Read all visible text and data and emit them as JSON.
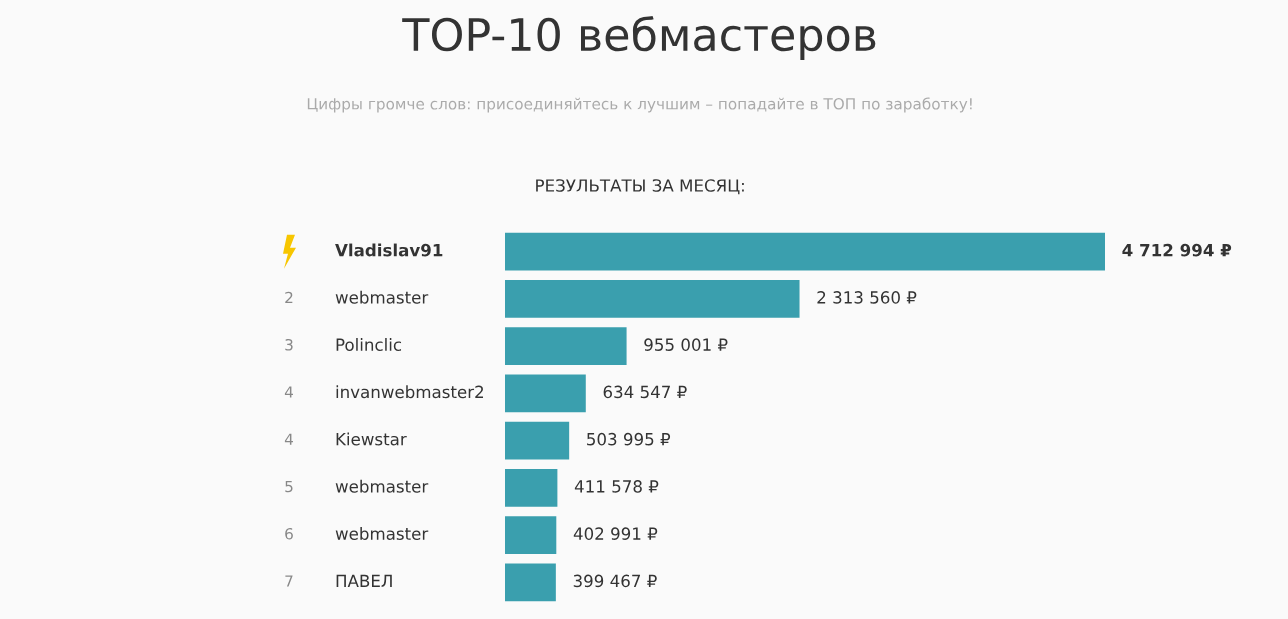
{
  "chart_data": {
    "type": "bar",
    "orientation": "horizontal",
    "title": "TOP-10 вебмастеров",
    "subtitle": "Цифры громче слов: присоединяйтесь к лучшим – попадайте в ТОП по заработку!",
    "annotations": [
      "РЕЗУЛЬТАТЫ ЗА МЕСЯЦ:"
    ],
    "categories": [
      "Vladislav91",
      "webmaster",
      "Polinclic",
      "invanwebmaster2",
      "Kiewstar",
      "webmaster",
      "webmaster",
      "ПАВЕЛ"
    ],
    "y2_categories": [
      null,
      "2",
      "3",
      "4",
      "4",
      "5",
      "6",
      "7"
    ],
    "values": [
      4712994,
      2313560,
      955001,
      634547,
      503995,
      411578,
      402991,
      399467
    ],
    "value_labels": [
      "4 712 994 ₽",
      "2 313 560 ₽",
      "955 001 ₽",
      "634 547 ₽",
      "503 995 ₽",
      "411 578 ₽",
      "402 991 ₽",
      "399 467 ₽"
    ],
    "color": "#3a9fae"
  }
}
